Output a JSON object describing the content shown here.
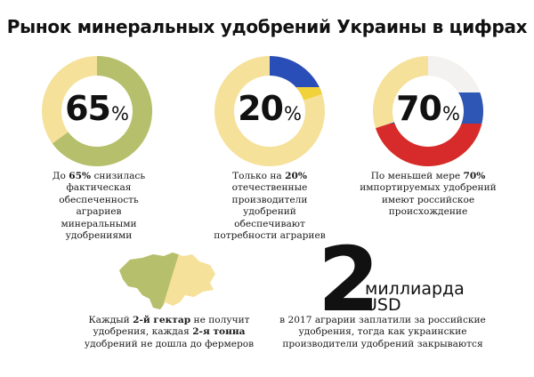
{
  "title": "Рынок минеральных удобрений Украины в цифрах",
  "colors": {
    "ring_green": "#b5bf6c",
    "ring_cream": "#f6e19a",
    "flag_ua_blue": "#2a4eb8",
    "flag_ua_yellow": "#f2d23a",
    "flag_ru_white": "#f4f1f1",
    "flag_ru_blue": "#2e56b5",
    "flag_ru_red": "#d72b2b"
  },
  "stats": [
    {
      "value": "65",
      "unit": "%",
      "fraction": 0.65,
      "ring_style": "green",
      "caption": {
        "pre": "До ",
        "bold": "65%",
        "post": " снизилась фактическая обеспеченность аграриев минеральными удобрениями"
      }
    },
    {
      "value": "20",
      "unit": "%",
      "fraction": 0.2,
      "ring_style": "ukraine-flag",
      "caption": {
        "pre": "Только на ",
        "bold": "20%",
        "post": " отечественные производители удобрений обеспечивают потребности аграриев"
      }
    },
    {
      "value": "70",
      "unit": "%",
      "fraction": 0.7,
      "ring_style": "russia-flag",
      "caption": {
        "pre": "По меньшей мере ",
        "bold": "70%",
        "post": " импортируемых удобрений имеют российское происхождение"
      }
    }
  ],
  "hectare": {
    "t1": "Каждый ",
    "b1": "2-й гектар",
    "t2": " не получит удобрения, каждая ",
    "b2": "2-я тонна",
    "t3": " удобрений не дошла до фермеров"
  },
  "billions": {
    "number": "2",
    "word": "миллиарда",
    "currency": "USD",
    "text": "в 2017 аграрии заплатили за российские удобрения, тогда как украинские производители удобрений закрываются"
  }
}
